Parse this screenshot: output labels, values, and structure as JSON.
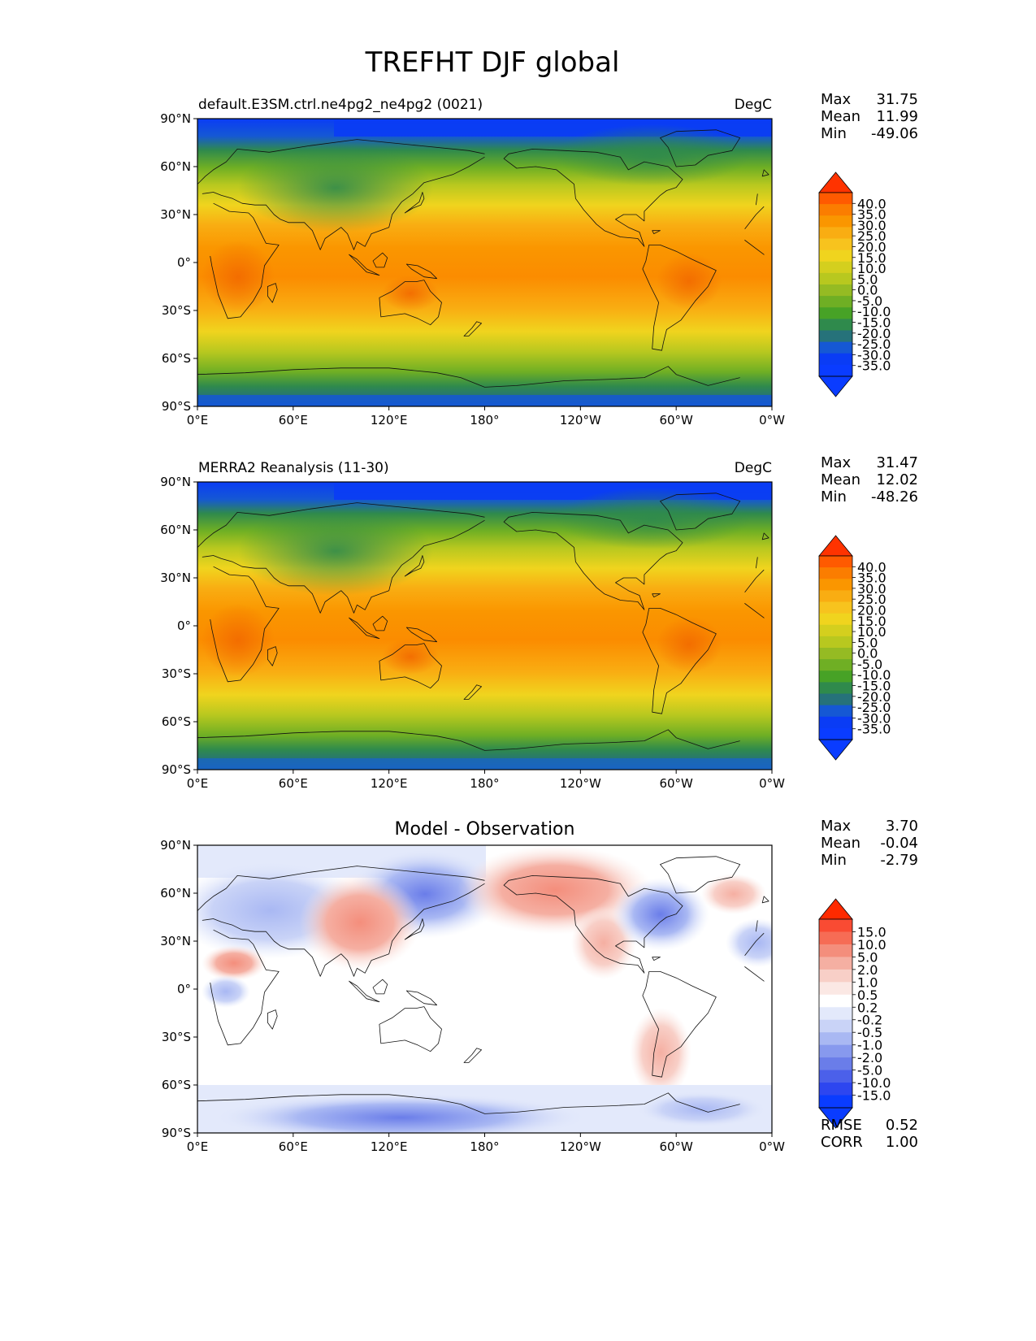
{
  "figure": {
    "title": "TREFHT DJF global"
  },
  "lat_ticks": [
    "90°N",
    "60°N",
    "30°N",
    "0°",
    "30°S",
    "60°S",
    "90°S"
  ],
  "lon_ticks": [
    "0°E",
    "60°E",
    "120°E",
    "180°",
    "120°W",
    "60°W",
    "0°W"
  ],
  "panels": [
    {
      "title_left": "default.E3SM.ctrl.ne4pg2_ne4pg2 (0021)",
      "title_right": "DegC",
      "title_center": "",
      "stats": [
        {
          "label": "Max",
          "value": "31.75"
        },
        {
          "label": "Mean",
          "value": "11.99"
        },
        {
          "label": "Min",
          "value": "-49.06"
        }
      ],
      "cbar_labels": [
        "40.0",
        "35.0",
        "30.0",
        "25.0",
        "20.0",
        "15.0",
        "10.0",
        "5.0",
        "0.0",
        "-5.0",
        "-10.0",
        "-15.0",
        "-20.0",
        "-25.0",
        "-30.0",
        "-35.0"
      ],
      "extra": []
    },
    {
      "title_left": "MERRA2 Reanalysis (11-30)",
      "title_right": "DegC",
      "title_center": "",
      "stats": [
        {
          "label": "Max",
          "value": "31.47"
        },
        {
          "label": "Mean",
          "value": "12.02"
        },
        {
          "label": "Min",
          "value": "-48.26"
        }
      ],
      "cbar_labels": [
        "40.0",
        "35.0",
        "30.0",
        "25.0",
        "20.0",
        "15.0",
        "10.0",
        "5.0",
        "0.0",
        "-5.0",
        "-10.0",
        "-15.0",
        "-20.0",
        "-25.0",
        "-30.0",
        "-35.0"
      ],
      "extra": []
    },
    {
      "title_left": "",
      "title_right": "",
      "title_center": "Model - Observation",
      "stats": [
        {
          "label": "Max",
          "value": "3.70"
        },
        {
          "label": "Mean",
          "value": "-0.04"
        },
        {
          "label": "Min",
          "value": "-2.79"
        }
      ],
      "cbar_labels": [
        "15.0",
        "10.0",
        "5.0",
        "2.0",
        "1.0",
        "0.5",
        "0.2",
        "-0.2",
        "-0.5",
        "-1.0",
        "-2.0",
        "-5.0",
        "-10.0",
        "-15.0"
      ],
      "extra": [
        {
          "label": "RMSE",
          "value": "0.52"
        },
        {
          "label": "CORR",
          "value": "1.00"
        }
      ]
    }
  ],
  "colors": {
    "temp_scale": [
      "#ff3300",
      "#ff5a00",
      "#fb7d00",
      "#fa9600",
      "#f9ad12",
      "#f7c31e",
      "#f0d41e",
      "#d4cf1e",
      "#b8c81f",
      "#95bb23",
      "#6faf24",
      "#47a226",
      "#2f8a4c",
      "#26727a",
      "#1558d4",
      "#0a3cf5",
      "#0a3cff"
    ],
    "diff_scale": [
      "#ff2a00",
      "#f94b33",
      "#f66c55",
      "#f48e7c",
      "#f5afa2",
      "#f8cfc7",
      "#fbe8e4",
      "#ffffff",
      "#e3e9fb",
      "#c9d3f7",
      "#a9b8f3",
      "#8799ee",
      "#6a7de9",
      "#4b60ea",
      "#2d46f0",
      "#0a3cff"
    ]
  }
}
